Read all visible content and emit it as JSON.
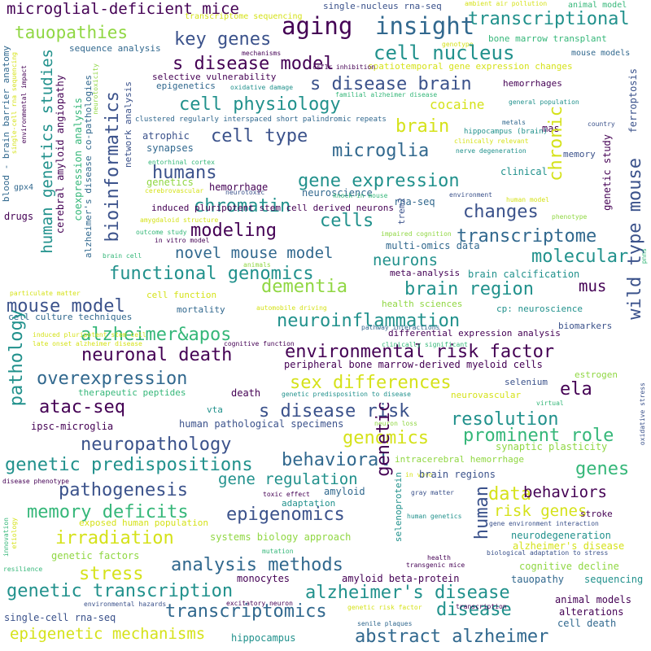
{
  "palette": {
    "dark_purple": "#440154",
    "indigo": "#3b528b",
    "blue": "#31688e",
    "teal": "#21918c",
    "green": "#35b779",
    "lime": "#90d743",
    "yellow": "#d5e21a"
  },
  "words": [
    "microglial-deficient mice",
    "single-nucleus rna-seq",
    "ambient air pollution",
    "animal model",
    "tauopathies",
    "key genes",
    "aging",
    "insight",
    "transcriptional",
    "genotype",
    "bone marrow transplant",
    "cell nucleus",
    "sequence analysis",
    "s disease model",
    "spatiotemporal gene expression changes",
    "mouse models",
    "selective vulnerability",
    "s disease brain",
    "hemorrhages",
    "epigenetics",
    "oxidative damage",
    "familial alzheimer disease",
    "cell physiology",
    "cocaine",
    "general population",
    "bioinformatics",
    "chronic",
    "clustered regularly interspaced short palindromic repeats",
    "brain",
    "metals",
    "mas",
    "country",
    "cell type",
    "hippocampus (brain)",
    "clinically relevant",
    "atrophic",
    "microglia",
    "memory",
    "synapses",
    "nerve degeneration",
    "entorhinal cortex",
    "humans",
    "genetics",
    "clinical",
    "gene expression",
    "neuroscience",
    "hemorrhage",
    "cerebrovascular",
    "neurotoxic",
    "knock-in mouse",
    "environment",
    "human model",
    "rna-seq",
    "trem2",
    "chromatin",
    "cells",
    "changes",
    "drugs",
    "phenotype",
    "amygdaloid structure",
    "modeling",
    "transcriptome",
    "outcome study",
    "in vitro model",
    "impaired cognition",
    "brain cell",
    "novel mouse model",
    "molecular",
    "multi-omics data",
    "animals",
    "neurons",
    "functional genomics",
    "meta-analysis",
    "brain calcification",
    "dementia",
    "particulate matter",
    "brain region",
    "mus",
    "cell function",
    "mouse model",
    "mortality",
    "automobile driving",
    "health sciences",
    "cp: neuroscience",
    "cell culture techniques",
    "neuroinflammation",
    "biomarkers",
    "alzheimer&apos",
    "pathway interactions",
    "differential expression analysis",
    "induced pluripotent stem cell",
    "neuronal death",
    "environmental risk factor",
    "late onset alzheimer disease",
    "cognitive function",
    "clinically significant",
    "peripheral bone marrow-derived myeloid cells",
    "overexpression",
    "sex differences",
    "selenium",
    "estrogen",
    "therapeutic peptides",
    "death",
    "genetic predisposition to disease",
    "neurovascular",
    "atac-seq",
    "s disease risk",
    "ela",
    "virtual",
    "ipsc-microglia",
    "vta",
    "resolution",
    "human pathological specimens",
    "neuron loss",
    "prominent role",
    "neuropathology",
    "genomics",
    "synaptic plasticity",
    "behavioral",
    "intracerebral hemorrhage",
    "genetic predispositions",
    "genes",
    "gene regulation",
    "in vivo",
    "brain regions",
    "pathogenesis",
    "data",
    "behaviors",
    "disease phenotype",
    "gray matter",
    "memory deficits",
    "risk genes",
    "amyloid",
    "toxic effect",
    "stroke",
    "adaptation",
    "epigenomics",
    "human genetics",
    "exposed human population",
    "irradiation",
    "gene environment interaction",
    "neurodegeneration",
    "alzheimer's disease",
    "systems biology approach",
    "mutation",
    "genetic factors",
    "health",
    "transgenic mice",
    "biological adaptation to stress",
    "analysis methods",
    "cognitive decline",
    "stress",
    "monocytes",
    "amyloid beta-protein",
    "tauopathy",
    "sequencing",
    "resilience",
    "genetic transcription",
    "alzheimer's disease",
    "environmental hazards",
    "excitatory neuron",
    "animal models",
    "transcriptomics",
    "disease",
    "alterations",
    "cell death",
    "single-cell rna-seq",
    "genetic risk factor",
    "transcription",
    "epigenetic mechanisms",
    "senile plaques",
    "abstract alzheimer",
    "hippocampus",
    "blood - brain barrier anatomy",
    "single-cell rna sequencing",
    "environmental impact",
    "gpx4",
    "human genetics studies",
    "cerebral amyloid angiopathy",
    "coexpression analysis",
    "alzheimer's disease co-pathologies",
    "network analysis",
    "neurotoxicity",
    "pathology",
    "genetic",
    "human",
    "selenoprotein",
    "innovation",
    "etiology",
    "transcriptome sequencing",
    "mechanisms",
    "csf1r inhibition",
    "induced pluripotent stem cell derived neurons",
    "wild type mouse",
    "ferroptosis",
    "genetic study",
    "oxidative stress",
    "pnns"
  ]
}
